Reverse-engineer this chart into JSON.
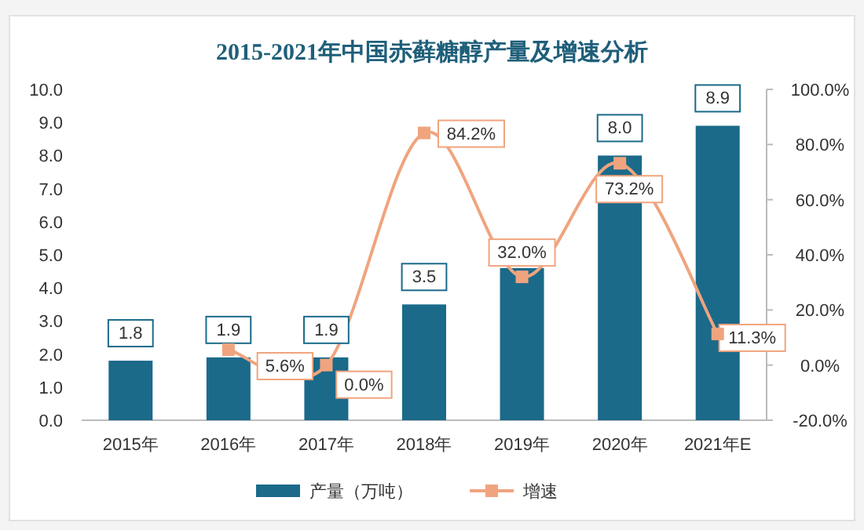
{
  "chart_data": {
    "type": "bar",
    "title": "2015-2021年中国赤藓糖醇产量及增速分析",
    "categories": [
      "2015年",
      "2016年",
      "2017年",
      "2018年",
      "2019年",
      "2020年",
      "2021年E"
    ],
    "series": [
      {
        "name": "产量（万吨）",
        "color": "#1b6a8a",
        "values": [
          1.8,
          1.9,
          1.9,
          3.5,
          4.6,
          8.0,
          8.9
        ],
        "value_labels": [
          "1.8",
          "1.9",
          "1.9",
          "3.5",
          null,
          "8.0",
          "8.9"
        ]
      },
      {
        "name": "增速",
        "type": "line",
        "axis": "y2",
        "color": "#f0a47e",
        "values": [
          null,
          5.6,
          0.0,
          84.2,
          32.0,
          73.2,
          11.3
        ],
        "value_labels": [
          null,
          "5.6%",
          "0.0%",
          "84.2%",
          "32.0%",
          "73.2%",
          "11.3%"
        ]
      }
    ],
    "ylim": [
      0,
      10
    ],
    "yticks": [
      {
        "value": 0,
        "label": "0.0"
      },
      {
        "value": 1,
        "label": "1.0"
      },
      {
        "value": 2,
        "label": "2.0"
      },
      {
        "value": 3,
        "label": "3.0"
      },
      {
        "value": 4,
        "label": "4.0"
      },
      {
        "value": 5,
        "label": "5.0"
      },
      {
        "value": 6,
        "label": "6.0"
      },
      {
        "value": 7,
        "label": "7.0"
      },
      {
        "value": 8,
        "label": "8.0"
      },
      {
        "value": 9,
        "label": "9.0"
      },
      {
        "value": 10,
        "label": "10.0"
      }
    ],
    "y2lim": [
      -20,
      100
    ],
    "y2ticks": [
      {
        "value": -20,
        "label": "-20.0%"
      },
      {
        "value": 0,
        "label": "0.0%"
      },
      {
        "value": 20,
        "label": "20.0%"
      },
      {
        "value": 40,
        "label": "40.0%"
      },
      {
        "value": 60,
        "label": "60.0%"
      },
      {
        "value": 80,
        "label": "80.0%"
      },
      {
        "value": 100,
        "label": "100.0%"
      }
    ],
    "marker": "square",
    "legend": "bottom"
  }
}
